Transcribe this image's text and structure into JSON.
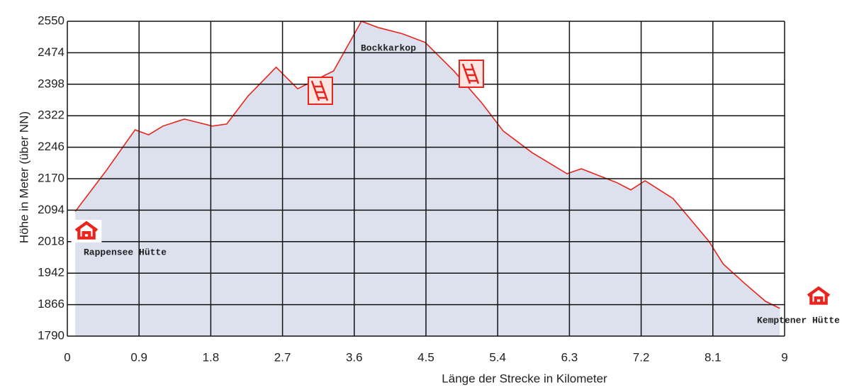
{
  "chart_data": {
    "type": "line",
    "x_label": "Länge der Strecke in Kilometer",
    "y_label": "Höhe in Meter (über NN)",
    "x": [
      0.1,
      0.49,
      0.85,
      1.02,
      1.2,
      1.47,
      1.82,
      2.0,
      2.27,
      2.62,
      2.89,
      3.34,
      3.69,
      3.9,
      4.2,
      4.49,
      4.85,
      5.2,
      5.47,
      5.83,
      6.27,
      6.45,
      6.9,
      7.07,
      7.25,
      7.6,
      8.05,
      8.23,
      8.5,
      8.76,
      8.94
    ],
    "series": [
      {
        "name": "Höhe",
        "color": "#e8241c",
        "values": [
          2091,
          2190,
          2288,
          2276,
          2297,
          2314,
          2297,
          2302,
          2370,
          2439,
          2387,
          2430,
          2550,
          2535,
          2520,
          2499,
          2430,
          2353,
          2285,
          2233,
          2182,
          2194,
          2160,
          2143,
          2165,
          2122,
          2019,
          1964,
          1917,
          1874,
          1857
        ]
      }
    ],
    "xlim": [
      0,
      9
    ],
    "xticks": [
      0,
      0.9,
      1.8,
      2.7,
      3.6,
      4.5,
      5.4,
      6.3,
      7.2,
      8.1,
      9
    ],
    "ylim": [
      1790,
      2550
    ],
    "yticks": [
      1790,
      1866,
      1942,
      2018,
      2094,
      2170,
      2246,
      2322,
      2398,
      2474,
      2550
    ],
    "grid": true,
    "annotations": [
      "Bockkarkop",
      "Rappensee Hütte",
      "Kemptener Hütte"
    ]
  }
}
